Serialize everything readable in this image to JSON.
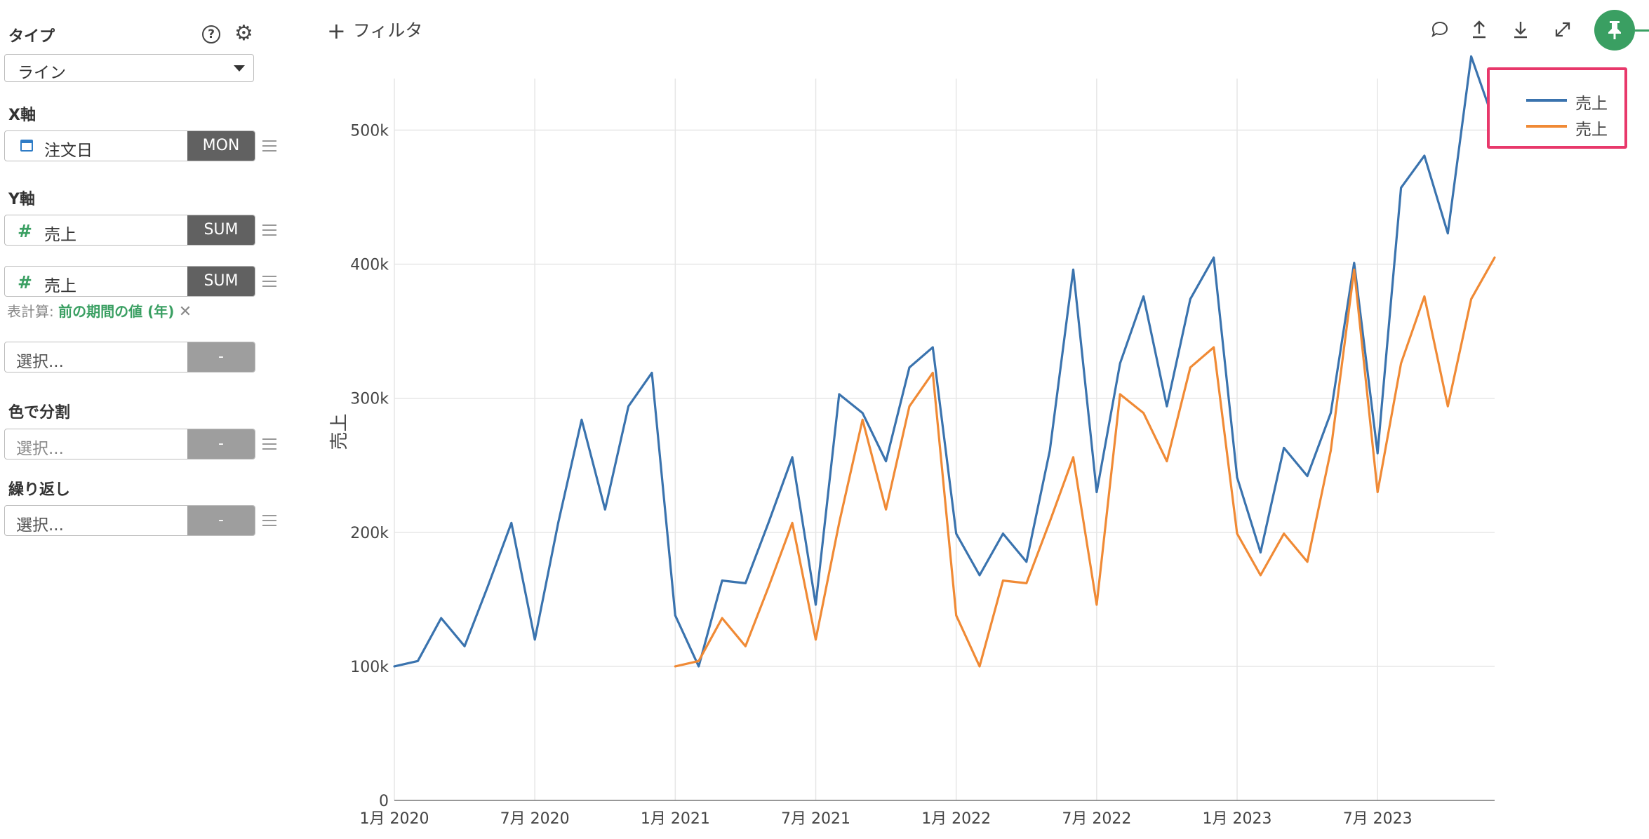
{
  "panel": {
    "type": {
      "label": "タイプ",
      "value": "ライン"
    },
    "x_axis": {
      "label": "X軸",
      "field": "注文日",
      "agg": "MON"
    },
    "y_axis": {
      "label": "Y軸",
      "fields": [
        {
          "name": "売上",
          "agg": "SUM"
        },
        {
          "name": "売上",
          "agg": "SUM"
        }
      ],
      "table_calc_label": "表計算:",
      "table_calc_value": "前の期間の値 (年)",
      "extra": {
        "placeholder": "選択...",
        "agg": "-"
      }
    },
    "color_split": {
      "label": "色で分割",
      "placeholder": "選択...",
      "agg": "-"
    },
    "repeat": {
      "label": "繰り返し",
      "placeholder": "選択...",
      "agg": "-"
    },
    "icons": {
      "help": "?",
      "settings": "⚙"
    }
  },
  "toolbar": {
    "filter_label": "フィルタ",
    "pin_icon": "pin-icon"
  },
  "legend": [
    {
      "label": "売上",
      "color": "#3a73ae"
    },
    {
      "label": "売上",
      "color": "#f08a35"
    }
  ],
  "chart_data": {
    "type": "line",
    "ylabel": "売上",
    "ylim": [
      0,
      550000
    ],
    "yticks": [
      {
        "value": 0,
        "label": "0"
      },
      {
        "value": 100000,
        "label": "100k"
      },
      {
        "value": 200000,
        "label": "200k"
      },
      {
        "value": 300000,
        "label": "300k"
      },
      {
        "value": 400000,
        "label": "400k"
      },
      {
        "value": 500000,
        "label": "500k"
      }
    ],
    "xticks": [
      {
        "value": "2020-01",
        "label": "1月 2020"
      },
      {
        "value": "2020-07",
        "label": "7月 2020"
      },
      {
        "value": "2021-01",
        "label": "1月 2021"
      },
      {
        "value": "2021-07",
        "label": "7月 2021"
      },
      {
        "value": "2022-01",
        "label": "1月 2022"
      },
      {
        "value": "2022-07",
        "label": "7月 2022"
      },
      {
        "value": "2023-01",
        "label": "1月 2023"
      },
      {
        "value": "2023-07",
        "label": "7月 2023"
      }
    ],
    "x_range": [
      "2020-01",
      "2023-12"
    ],
    "series": [
      {
        "name": "売上",
        "color": "#3a73ae",
        "points": [
          [
            "2020-01",
            100000
          ],
          [
            "2020-02",
            104000
          ],
          [
            "2020-03",
            136000
          ],
          [
            "2020-04",
            115000
          ],
          [
            "2020-05",
            160000
          ],
          [
            "2020-06",
            207000
          ],
          [
            "2020-07",
            120000
          ],
          [
            "2020-08",
            207000
          ],
          [
            "2020-09",
            284000
          ],
          [
            "2020-10",
            217000
          ],
          [
            "2020-11",
            294000
          ],
          [
            "2020-12",
            319000
          ],
          [
            "2021-01",
            138000
          ],
          [
            "2021-02",
            100000
          ],
          [
            "2021-03",
            164000
          ],
          [
            "2021-04",
            162000
          ],
          [
            "2021-05",
            208000
          ],
          [
            "2021-06",
            256000
          ],
          [
            "2021-07",
            146000
          ],
          [
            "2021-08",
            303000
          ],
          [
            "2021-09",
            289000
          ],
          [
            "2021-10",
            253000
          ],
          [
            "2021-11",
            323000
          ],
          [
            "2021-12",
            338000
          ],
          [
            "2022-01",
            199000
          ],
          [
            "2022-02",
            168000
          ],
          [
            "2022-03",
            199000
          ],
          [
            "2022-04",
            178000
          ],
          [
            "2022-05",
            261000
          ],
          [
            "2022-06",
            396000
          ],
          [
            "2022-07",
            230000
          ],
          [
            "2022-08",
            326000
          ],
          [
            "2022-09",
            376000
          ],
          [
            "2022-10",
            294000
          ],
          [
            "2022-11",
            374000
          ],
          [
            "2022-12",
            405000
          ],
          [
            "2023-01",
            241000
          ],
          [
            "2023-02",
            185000
          ],
          [
            "2023-03",
            263000
          ],
          [
            "2023-04",
            242000
          ],
          [
            "2023-05",
            289000
          ],
          [
            "2023-06",
            401000
          ],
          [
            "2023-07",
            259000
          ],
          [
            "2023-08",
            457000
          ],
          [
            "2023-09",
            481000
          ],
          [
            "2023-10",
            423000
          ],
          [
            "2023-11",
            555000
          ],
          [
            "2023-12",
            505000
          ]
        ]
      },
      {
        "name": "売上",
        "color": "#f08a35",
        "points": [
          [
            "2021-01",
            100000
          ],
          [
            "2021-02",
            104000
          ],
          [
            "2021-03",
            136000
          ],
          [
            "2021-04",
            115000
          ],
          [
            "2021-05",
            160000
          ],
          [
            "2021-06",
            207000
          ],
          [
            "2021-07",
            120000
          ],
          [
            "2021-08",
            207000
          ],
          [
            "2021-09",
            284000
          ],
          [
            "2021-10",
            217000
          ],
          [
            "2021-11",
            294000
          ],
          [
            "2021-12",
            319000
          ],
          [
            "2022-01",
            138000
          ],
          [
            "2022-02",
            100000
          ],
          [
            "2022-03",
            164000
          ],
          [
            "2022-04",
            162000
          ],
          [
            "2022-05",
            208000
          ],
          [
            "2022-06",
            256000
          ],
          [
            "2022-07",
            146000
          ],
          [
            "2022-08",
            303000
          ],
          [
            "2022-09",
            289000
          ],
          [
            "2022-10",
            253000
          ],
          [
            "2022-11",
            323000
          ],
          [
            "2022-12",
            338000
          ],
          [
            "2023-01",
            199000
          ],
          [
            "2023-02",
            168000
          ],
          [
            "2023-03",
            199000
          ],
          [
            "2023-04",
            178000
          ],
          [
            "2023-05",
            261000
          ],
          [
            "2023-06",
            396000
          ],
          [
            "2023-07",
            230000
          ],
          [
            "2023-08",
            326000
          ],
          [
            "2023-09",
            376000
          ],
          [
            "2023-10",
            294000
          ],
          [
            "2023-11",
            374000
          ],
          [
            "2023-12",
            405000
          ]
        ]
      }
    ],
    "grid": true,
    "legend_position": "top-right"
  }
}
